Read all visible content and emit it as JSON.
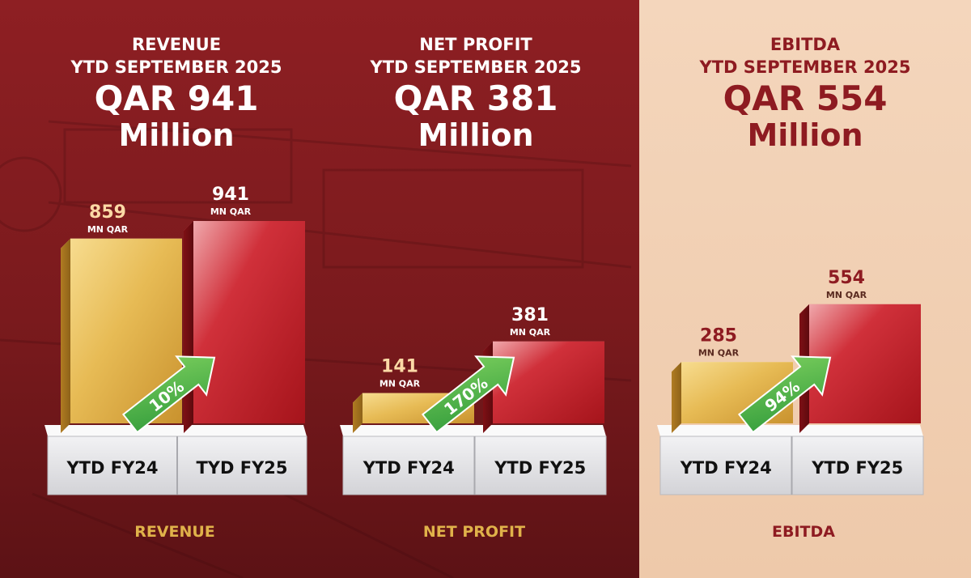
{
  "chart_data": [
    {
      "type": "bar",
      "title": "REVENUE",
      "subtitle": "YTD SEPTEMBER 2025",
      "headline_value": "QAR 941",
      "headline_unit": "Million",
      "categories": [
        "YTD FY24",
        "TYD FY25"
      ],
      "values": [
        859,
        941
      ],
      "value_unit": "MN QAR",
      "growth": "10%",
      "footer": "REVENUE"
    },
    {
      "type": "bar",
      "title": "NET PROFIT",
      "subtitle": "YTD SEPTEMBER 2025",
      "headline_value": "QAR 381",
      "headline_unit": "Million",
      "categories": [
        "YTD FY24",
        "YTD FY25"
      ],
      "values": [
        141,
        381
      ],
      "value_unit": "MN QAR",
      "growth": "170%",
      "footer": "NET PROFIT"
    },
    {
      "type": "bar",
      "title": "EBITDA",
      "subtitle": "YTD SEPTEMBER 2025",
      "headline_value": "QAR 554",
      "headline_unit": "Million",
      "categories": [
        "YTD FY24",
        "YTD FY25"
      ],
      "values": [
        285,
        554
      ],
      "value_unit": "MN QAR",
      "growth": "94%",
      "footer": "EBITDA"
    }
  ],
  "colors": {
    "red_panel": "#8a1d20",
    "light_panel": "#f2d3b8",
    "gold": "#e0b24a",
    "red_bar": "#c41e24",
    "accent_light": "#fbd9a6",
    "dark_red_text": "#8e1b21",
    "arrow_green": "#4cb848",
    "pedestal": "#e6e6e8"
  }
}
